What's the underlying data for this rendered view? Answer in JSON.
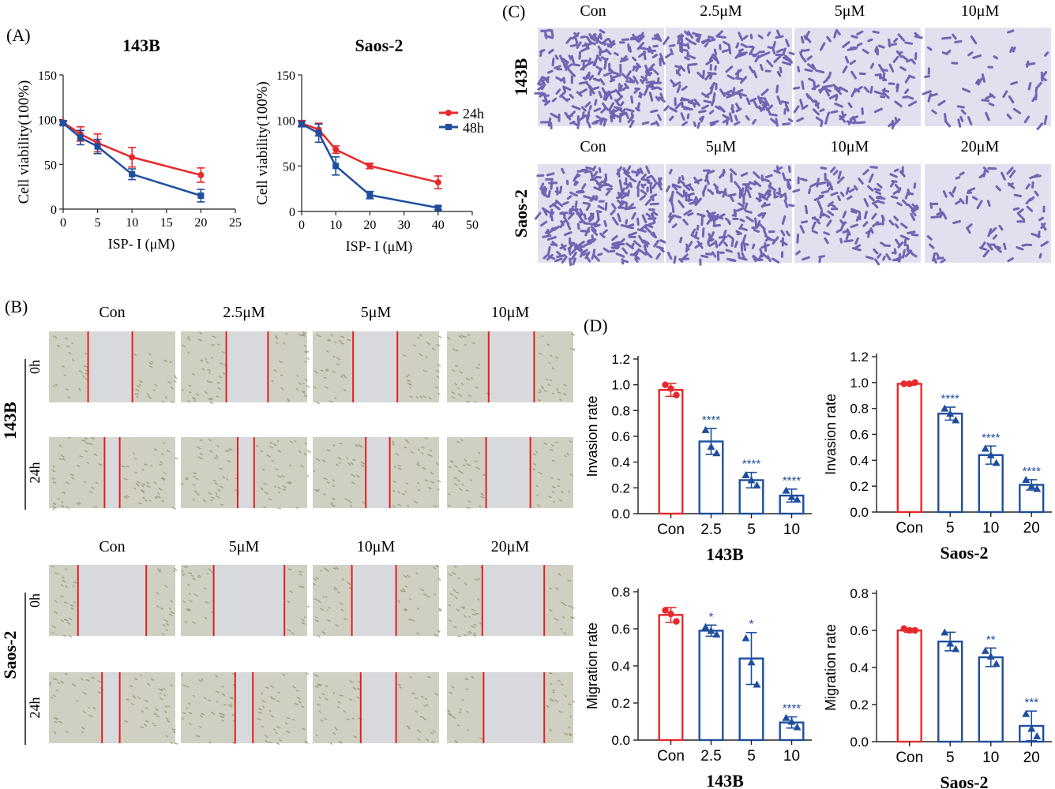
{
  "panel_labels": {
    "a": "(A)",
    "b": "(B)",
    "c": "(C)",
    "d": "(D)"
  },
  "colors": {
    "h24": "#e8282b",
    "h48": "#1f4e9e",
    "control_bar": "#e8282b",
    "treated_bar": "#1f4e9e",
    "scratch_line": "#e02020",
    "stain": "#5a4fa8",
    "stain_bg": "#e2e0ee",
    "wound_bg": "#d7d9dc",
    "cells_bg": "#cfd0c2"
  },
  "chart_data": [
    {
      "id": "viability-143b",
      "type": "line",
      "title": "143B",
      "xlabel": "ISP- I (μM)",
      "ylabel": "Cell viability(100%)",
      "xlim": [
        0,
        25
      ],
      "ylim": [
        0,
        150
      ],
      "xticks": [
        "0",
        "5",
        "10",
        "15",
        "20",
        "25"
      ],
      "yticks": [
        "0",
        "50",
        "100",
        "150"
      ],
      "series": [
        {
          "name": "24h",
          "color": "#e8282b",
          "x": [
            0,
            2.5,
            5,
            10,
            20
          ],
          "y": [
            97,
            84,
            74,
            58,
            38
          ],
          "err": [
            2,
            8,
            10,
            11,
            8
          ]
        },
        {
          "name": "48h",
          "color": "#1f4e9e",
          "x": [
            0,
            2.5,
            5,
            10,
            20
          ],
          "y": [
            96,
            80,
            70,
            39,
            15
          ],
          "err": [
            2,
            8,
            8,
            6,
            7
          ]
        }
      ]
    },
    {
      "id": "viability-saos2",
      "type": "line",
      "title": "Saos-2",
      "xlabel": "ISP- I (μM)",
      "ylabel": "Cell viability(100%)",
      "xlim": [
        0,
        50
      ],
      "ylim": [
        0,
        150
      ],
      "xticks": [
        "0",
        "10",
        "20",
        "30",
        "40",
        "50"
      ],
      "yticks": [
        "0",
        "50",
        "100",
        "150"
      ],
      "legend": [
        "24h",
        "48h"
      ],
      "legend_position": "top-right",
      "series": [
        {
          "name": "24h",
          "color": "#e8282b",
          "x": [
            0,
            5,
            10,
            20,
            40
          ],
          "y": [
            97,
            90,
            68,
            50,
            32
          ],
          "err": [
            3,
            7,
            4,
            3,
            7
          ]
        },
        {
          "name": "48h",
          "color": "#1f4e9e",
          "x": [
            0,
            5,
            10,
            20,
            40
          ],
          "y": [
            96,
            86,
            50,
            18,
            4
          ],
          "err": [
            3,
            10,
            10,
            4,
            2
          ]
        }
      ]
    },
    {
      "id": "invasion-143b",
      "type": "bar",
      "title": "143B",
      "ylabel": "Invasion rate",
      "ylim": [
        0,
        1.2
      ],
      "yticks": [
        "0.0",
        "0.2",
        "0.4",
        "0.6",
        "0.8",
        "1.0",
        "1.2"
      ],
      "categories": [
        "Con",
        "2.5",
        "5",
        "10"
      ],
      "values": [
        0.96,
        0.56,
        0.26,
        0.14
      ],
      "errors": [
        0.05,
        0.1,
        0.06,
        0.05
      ],
      "points": [
        [
          1.0,
          0.97,
          0.92
        ],
        [
          0.65,
          0.52,
          0.47
        ],
        [
          0.3,
          0.26,
          0.22
        ],
        [
          0.18,
          0.13,
          0.11
        ]
      ],
      "significance": [
        "",
        "****",
        "****",
        "****"
      ]
    },
    {
      "id": "invasion-saos2",
      "type": "bar",
      "title": "Saos-2",
      "ylabel": "Invasion rate",
      "ylim": [
        0,
        1.2
      ],
      "yticks": [
        "0.0",
        "0.2",
        "0.4",
        "0.6",
        "0.8",
        "1.0",
        "1.2"
      ],
      "categories": [
        "Con",
        "5",
        "10",
        "20"
      ],
      "values": [
        0.99,
        0.76,
        0.44,
        0.21
      ],
      "errors": [
        0.01,
        0.05,
        0.07,
        0.04
      ],
      "points": [
        [
          0.99,
          0.99,
          1.0
        ],
        [
          0.8,
          0.76,
          0.71
        ],
        [
          0.49,
          0.44,
          0.38
        ],
        [
          0.25,
          0.2,
          0.18
        ]
      ],
      "significance": [
        "",
        "****",
        "****",
        "****"
      ]
    },
    {
      "id": "migration-143b",
      "type": "bar",
      "title": "143B",
      "ylabel": "Migration rate",
      "ylim": [
        0,
        0.8
      ],
      "yticks": [
        "0.0",
        "0.2",
        "0.4",
        "0.6",
        "0.8"
      ],
      "categories": [
        "Con",
        "2.5",
        "5",
        "10"
      ],
      "values": [
        0.675,
        0.59,
        0.44,
        0.095
      ],
      "errors": [
        0.04,
        0.03,
        0.14,
        0.03
      ],
      "points": [
        [
          0.7,
          0.68,
          0.64
        ],
        [
          0.61,
          0.59,
          0.57
        ],
        [
          0.55,
          0.42,
          0.3
        ],
        [
          0.12,
          0.1,
          0.07
        ]
      ],
      "significance": [
        "",
        "*",
        "*",
        "****"
      ]
    },
    {
      "id": "migration-saos2",
      "type": "bar",
      "title": "Saos-2",
      "ylabel": "Migration rate",
      "ylim": [
        0,
        0.8
      ],
      "yticks": [
        "0.0",
        "0.2",
        "0.4",
        "0.6",
        "0.8"
      ],
      "categories": [
        "Con",
        "5",
        "10",
        "20"
      ],
      "values": [
        0.6,
        0.54,
        0.455,
        0.085
      ],
      "errors": [
        0.01,
        0.05,
        0.05,
        0.08
      ],
      "points": [
        [
          0.61,
          0.6,
          0.6
        ],
        [
          0.59,
          0.53,
          0.5
        ],
        [
          0.49,
          0.46,
          0.42
        ],
        [
          0.15,
          0.07,
          0.03
        ]
      ],
      "significance": [
        "",
        "",
        "**",
        "***"
      ]
    }
  ],
  "wound_healing": {
    "groups": [
      {
        "cell_line": "143B",
        "conditions": [
          "Con",
          "2.5μM",
          "5μM",
          "10μM"
        ],
        "timepoints": [
          "0h",
          "24h"
        ],
        "wound_edges": [
          [
            [
              0.31,
              0.66
            ],
            [
              0.36,
              0.69
            ],
            [
              0.32,
              0.67
            ],
            [
              0.33,
              0.69
            ]
          ],
          [
            [
              0.44,
              0.56
            ],
            [
              0.45,
              0.58
            ],
            [
              0.42,
              0.61
            ],
            [
              0.31,
              0.66
            ]
          ]
        ]
      },
      {
        "cell_line": "Saos-2",
        "conditions": [
          "Con",
          "5μM",
          "10μM",
          "20μM"
        ],
        "timepoints": [
          "0h",
          "24h"
        ],
        "wound_edges": [
          [
            [
              0.23,
              0.77
            ],
            [
              0.26,
              0.82
            ],
            [
              0.31,
              0.66
            ],
            [
              0.28,
              0.77
            ]
          ],
          [
            [
              0.42,
              0.56
            ],
            [
              0.43,
              0.57
            ],
            [
              0.38,
              0.66
            ],
            [
              0.29,
              0.77
            ]
          ]
        ]
      }
    ]
  },
  "transwell": {
    "rows": [
      {
        "cell_line": "143B",
        "conditions": [
          "Con",
          "2.5μM",
          "5μM",
          "10μM"
        ],
        "density": [
          1.0,
          0.72,
          0.5,
          0.22
        ]
      },
      {
        "cell_line": "Saos-2",
        "conditions": [
          "Con",
          "5μM",
          "10μM",
          "20μM"
        ],
        "density": [
          1.0,
          0.8,
          0.55,
          0.3
        ]
      }
    ]
  }
}
